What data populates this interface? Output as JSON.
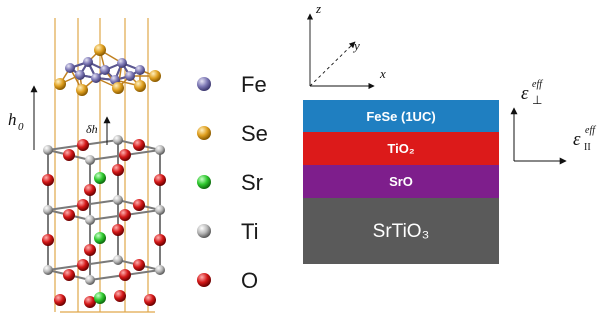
{
  "crystal": {
    "height_label": "h",
    "height_sub": "0",
    "delta_label": "δh",
    "colors": {
      "Fe": "#7d78b5",
      "Se": "#e0a020",
      "Sr": "#2ec82e",
      "Ti": "#b8b8b8",
      "O": "#d41818",
      "bond": "#e0a84a"
    }
  },
  "legend": [
    {
      "element": "Fe",
      "color": "#7d78b5"
    },
    {
      "element": "Se",
      "color": "#e0a020"
    },
    {
      "element": "Sr",
      "color": "#2ec82e"
    },
    {
      "element": "Ti",
      "color": "#b8b8b8"
    },
    {
      "element": "O",
      "color": "#d41818"
    }
  ],
  "axes3d": {
    "z": "z",
    "y": "y",
    "x": "x"
  },
  "layers": [
    {
      "label": "FeSe (1UC)",
      "color": "#1f7fc1"
    },
    {
      "label": "TiO₂",
      "color": "#dc1a1a"
    },
    {
      "label": "SrO",
      "color": "#7e1e8c"
    },
    {
      "label": "SrTiO₃",
      "color": "#5a5a5a"
    }
  ],
  "strain": {
    "perp_symbol": "ε",
    "perp_sup": "eff",
    "perp_sub": "⊥",
    "par_symbol": "ε",
    "par_sup": "eff",
    "par_sub": "II"
  }
}
